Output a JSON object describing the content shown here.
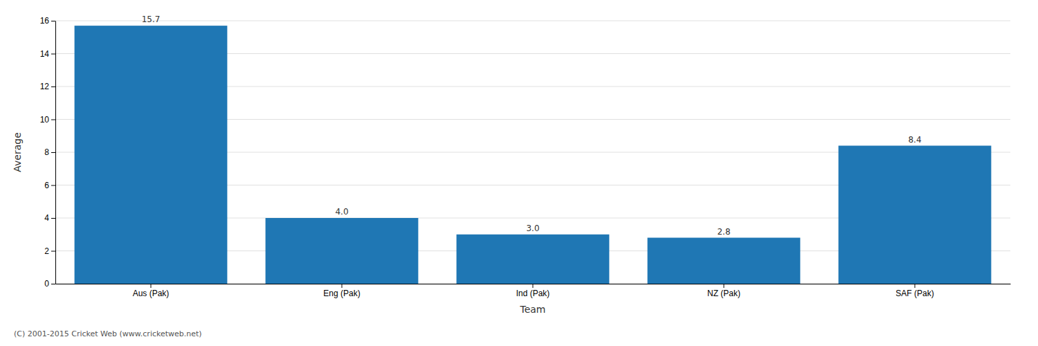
{
  "chart_data": {
    "type": "bar",
    "categories": [
      "Aus (Pak)",
      "Eng (Pak)",
      "Ind (Pak)",
      "NZ (Pak)",
      "SAF (Pak)"
    ],
    "values": [
      15.7,
      4.0,
      3.0,
      2.8,
      8.4
    ],
    "value_labels": [
      "15.7",
      "4.0",
      "3.0",
      "2.8",
      "8.4"
    ],
    "data_labels": true,
    "xlabel": "Team",
    "ylabel": "Average",
    "ylim": [
      0,
      16
    ],
    "yticks": [
      0,
      2,
      4,
      6,
      8,
      10,
      12,
      14,
      16
    ],
    "grid": true,
    "annotations": [
      "(C) 2001-2015 Cricket Web (www.cricketweb.net)"
    ]
  }
}
